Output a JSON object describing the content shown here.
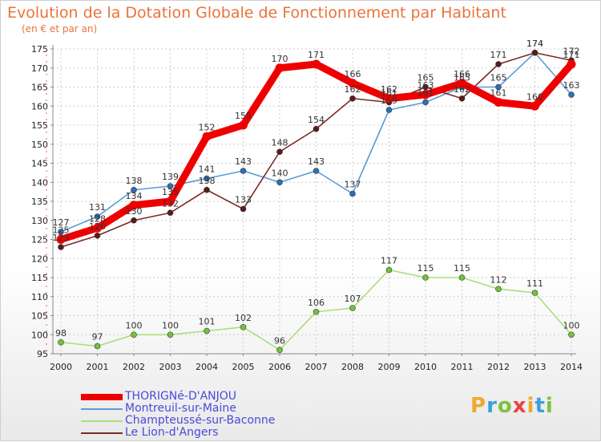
{
  "header": {
    "title": "Evolution de la Dotation Globale de Fonctionnement par Habitant",
    "subtitle": "(en € et par an)"
  },
  "chart_data": {
    "type": "line",
    "title": "Evolution de la Dotation Globale de Fonctionnement par Habitant",
    "subtitle": "(en € et par an)",
    "x": [
      2000,
      2001,
      2002,
      2003,
      2004,
      2005,
      2006,
      2007,
      2008,
      2009,
      2010,
      2011,
      2012,
      2013,
      2014
    ],
    "ylim": [
      95,
      175
    ],
    "yticks": [
      95,
      100,
      105,
      110,
      115,
      120,
      125,
      130,
      135,
      140,
      145,
      150,
      155,
      160,
      165,
      170,
      175
    ],
    "grid": true,
    "legend_position": "bottom-left",
    "series": [
      {
        "name": "Montreuil-sur-Maine",
        "color": "#5b9bd5",
        "marker": "#2e6fb5",
        "values": [
          127,
          131,
          138,
          139,
          141,
          143,
          140,
          143,
          137,
          159,
          161,
          165,
          165,
          174,
          163
        ]
      },
      {
        "name": "Champteussé-sur-Baconne",
        "color": "#a9dd7a",
        "marker": "#6fc43a",
        "values": [
          98,
          97,
          100,
          100,
          101,
          102,
          96,
          106,
          107,
          117,
          115,
          115,
          112,
          111,
          100
        ]
      },
      {
        "name": "Le Lion-d'Angers",
        "color": "#7a2a2a",
        "marker": "#5c1a1a",
        "values": [
          123,
          126,
          130,
          132,
          138,
          133,
          148,
          154,
          162,
          161,
          165,
          162,
          171,
          174,
          172
        ]
      },
      {
        "name": "THORIGNé-D'ANJOU",
        "color": "#ee0000",
        "marker": "#ee0000",
        "values": [
          125,
          128,
          134,
          135,
          152,
          155,
          170,
          171,
          166,
          162,
          163,
          166,
          161,
          160,
          171
        ]
      }
    ]
  },
  "legend": {
    "items": [
      {
        "label": "THORIGNé-D'ANJOU",
        "color": "#ee0000"
      },
      {
        "label": "Montreuil-sur-Maine",
        "color": "#5b9bd5"
      },
      {
        "label": "Champteussé-sur-Baconne",
        "color": "#a9dd7a"
      },
      {
        "label": "Le Lion-d'Angers",
        "color": "#7a2a2a"
      }
    ]
  },
  "logo": {
    "letters": [
      "P",
      "r",
      "o",
      "x",
      "i",
      "t",
      "i"
    ],
    "colors": [
      "#f0a830",
      "#3aa0dc",
      "#7cc242",
      "#ee4040",
      "#f0a830",
      "#3aa0dc",
      "#7cc242"
    ]
  }
}
